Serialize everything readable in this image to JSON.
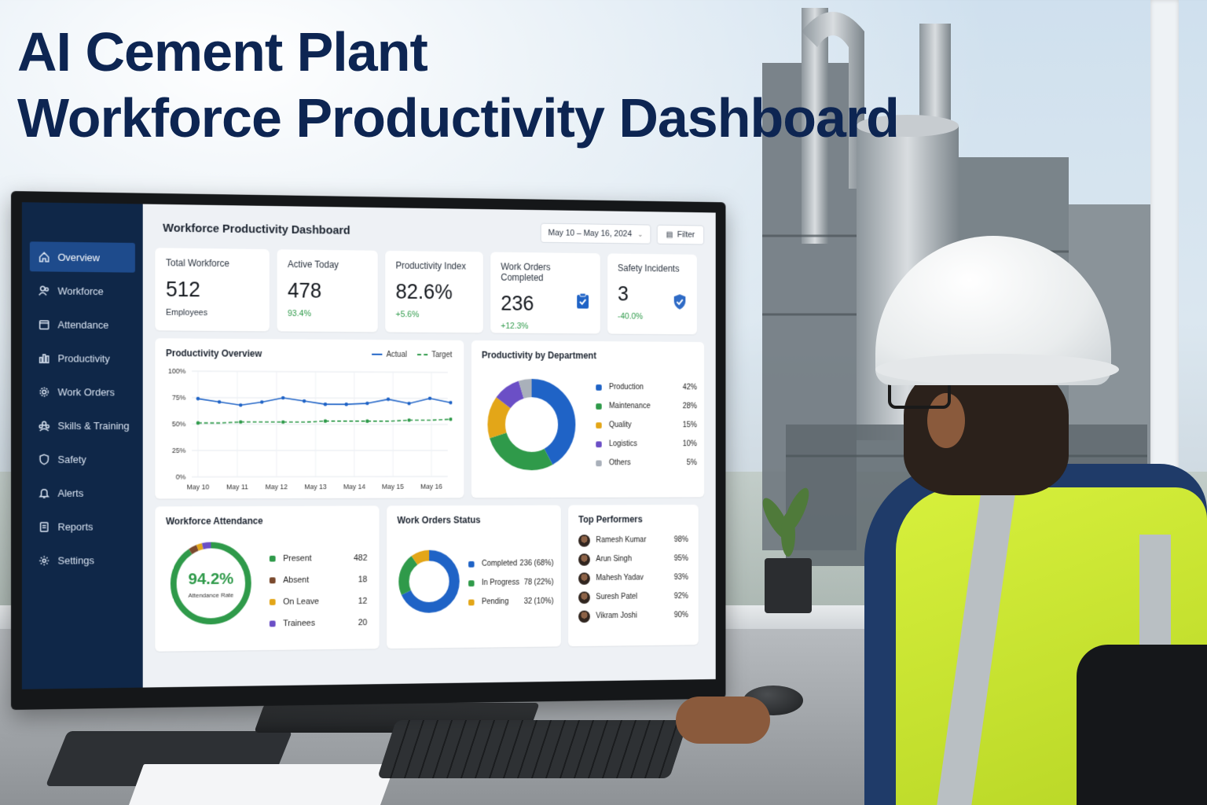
{
  "headline": {
    "line1": "AI Cement Plant",
    "line2": "Workforce Productivity Dashboard"
  },
  "sidebar": {
    "items": [
      {
        "label": "Overview",
        "icon": "home-icon",
        "active": true
      },
      {
        "label": "Workforce",
        "icon": "users-icon",
        "active": false
      },
      {
        "label": "Attendance",
        "icon": "calendar-icon",
        "active": false
      },
      {
        "label": "Productivity",
        "icon": "bar-chart-icon",
        "active": false
      },
      {
        "label": "Work Orders",
        "icon": "gear-icon",
        "active": false
      },
      {
        "label": "Skills & Training",
        "icon": "training-icon",
        "active": false
      },
      {
        "label": "Safety",
        "icon": "shield-icon",
        "active": false
      },
      {
        "label": "Alerts",
        "icon": "bell-icon",
        "active": false
      },
      {
        "label": "Reports",
        "icon": "report-icon",
        "active": false
      },
      {
        "label": "Settings",
        "icon": "settings-icon",
        "active": false
      }
    ]
  },
  "header": {
    "title": "Workforce Productivity Dashboard",
    "date_range": "May 10 – May 16, 2024",
    "filter_label": "Filter"
  },
  "kpis": [
    {
      "label": "Total Workforce",
      "value": "512",
      "sub": "Employees",
      "sub_color": "neutral",
      "icon": ""
    },
    {
      "label": "Active Today",
      "value": "478",
      "sub": "93.4%",
      "sub_color": "green",
      "icon": ""
    },
    {
      "label": "Productivity Index",
      "value": "82.6%",
      "sub": "+5.6%",
      "sub_color": "green",
      "icon": ""
    },
    {
      "label": "Work Orders Completed",
      "value": "236",
      "sub": "+12.3%",
      "sub_color": "green",
      "icon": "clipboard-check-icon"
    },
    {
      "label": "Safety Incidents",
      "value": "3",
      "sub": "-40.0%",
      "sub_color": "green",
      "icon": "shield-check-icon"
    }
  ],
  "productivity_overview": {
    "title": "Productivity Overview",
    "legend": [
      "Actual",
      "Target"
    ]
  },
  "department": {
    "title": "Productivity by Department"
  },
  "attendance": {
    "title": "Workforce Attendance",
    "rate": "94.2%",
    "rate_label": "Attendance Rate"
  },
  "work_orders": {
    "title": "Work Orders Status"
  },
  "top_performers": {
    "title": "Top Performers",
    "people": [
      {
        "name": "Ramesh Kumar",
        "score": "98%"
      },
      {
        "name": "Arun Singh",
        "score": "95%"
      },
      {
        "name": "Mahesh Yadav",
        "score": "93%"
      },
      {
        "name": "Suresh Patel",
        "score": "92%"
      },
      {
        "name": "Vikram Joshi",
        "score": "90%"
      }
    ]
  },
  "colors": {
    "navy": "#0f2748",
    "blue": "#1f63c6",
    "green": "#2f9a4a",
    "amber": "#e3a618",
    "purple": "#6b4fc6",
    "gray": "#a9b0ba",
    "brown": "#7b4a2e"
  },
  "chart_data": [
    {
      "type": "line",
      "title": "Productivity Overview",
      "x_tick_labels": [
        "May 10",
        "May 11",
        "May 12",
        "May 13",
        "May 14",
        "May 15",
        "May 16"
      ],
      "y_tick_labels": [
        "100%",
        "75%",
        "50%",
        "25%",
        "0%"
      ],
      "ylim": [
        0,
        100
      ],
      "grid": true,
      "legend_position": "top-right",
      "series": [
        {
          "name": "Actual",
          "color": "#1f63c6",
          "style": "solid",
          "values": [
            74,
            71,
            68,
            71,
            75,
            72,
            69,
            69,
            70,
            74,
            70,
            75,
            71
          ]
        },
        {
          "name": "Target",
          "color": "#2f9a4a",
          "style": "dashed",
          "values": [
            51,
            51,
            52,
            52,
            52,
            52,
            53,
            53,
            53,
            53,
            54,
            54,
            55
          ]
        }
      ]
    },
    {
      "type": "pie",
      "title": "Productivity by Department",
      "donut": true,
      "slices": [
        {
          "label": "Production",
          "value": 42,
          "display": "42%",
          "color": "#1f63c6"
        },
        {
          "label": "Maintenance",
          "value": 28,
          "display": "28%",
          "color": "#2f9a4a"
        },
        {
          "label": "Quality",
          "value": 15,
          "display": "15%",
          "color": "#e3a618"
        },
        {
          "label": "Logistics",
          "value": 10,
          "display": "10%",
          "color": "#6b4fc6"
        },
        {
          "label": "Others",
          "value": 5,
          "display": "5%",
          "color": "#a9b0ba"
        }
      ]
    },
    {
      "type": "pie",
      "title": "Workforce Attendance",
      "donut": true,
      "center_value": "94.2%",
      "center_label": "Attendance Rate",
      "slices": [
        {
          "label": "Present",
          "value": 482,
          "display": "482",
          "color": "#2f9a4a"
        },
        {
          "label": "Absent",
          "value": 18,
          "display": "18",
          "color": "#7b4a2e"
        },
        {
          "label": "On Leave",
          "value": 12,
          "display": "12",
          "color": "#e3a618"
        },
        {
          "label": "Trainees",
          "value": 20,
          "display": "20",
          "color": "#6b4fc6"
        }
      ]
    },
    {
      "type": "pie",
      "title": "Work Orders Status",
      "donut": true,
      "slices": [
        {
          "label": "Completed",
          "value": 68,
          "display": "236 (68%)",
          "color": "#1f63c6"
        },
        {
          "label": "In Progress",
          "value": 22,
          "display": "78 (22%)",
          "color": "#2f9a4a"
        },
        {
          "label": "Pending",
          "value": 10,
          "display": "32 (10%)",
          "color": "#e3a618"
        }
      ]
    }
  ]
}
